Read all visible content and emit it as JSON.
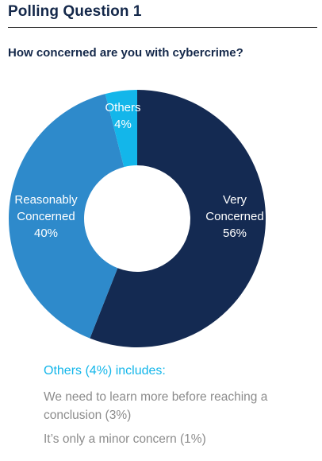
{
  "header": {
    "title": "Polling Question 1",
    "question": "How concerned are you with cybercrime?"
  },
  "chart_data": {
    "type": "pie",
    "donut": true,
    "slices": [
      {
        "label_lines": [
          "Very",
          "Concerned"
        ],
        "value": 56,
        "value_text": "56%",
        "color": "#142a52"
      },
      {
        "label_lines": [
          "Reasonably",
          "Concerned"
        ],
        "value": 40,
        "value_text": "40%",
        "color": "#2e8acb"
      },
      {
        "label_lines": [
          "Others"
        ],
        "value": 4,
        "value_text": "4%",
        "color": "#13b6ea"
      }
    ]
  },
  "others_note": {
    "heading": "Others (4%) includes:",
    "items": [
      "We need to learn more before reaching a conclusion (3%)",
      "It’s only a minor concern (1%)"
    ]
  }
}
